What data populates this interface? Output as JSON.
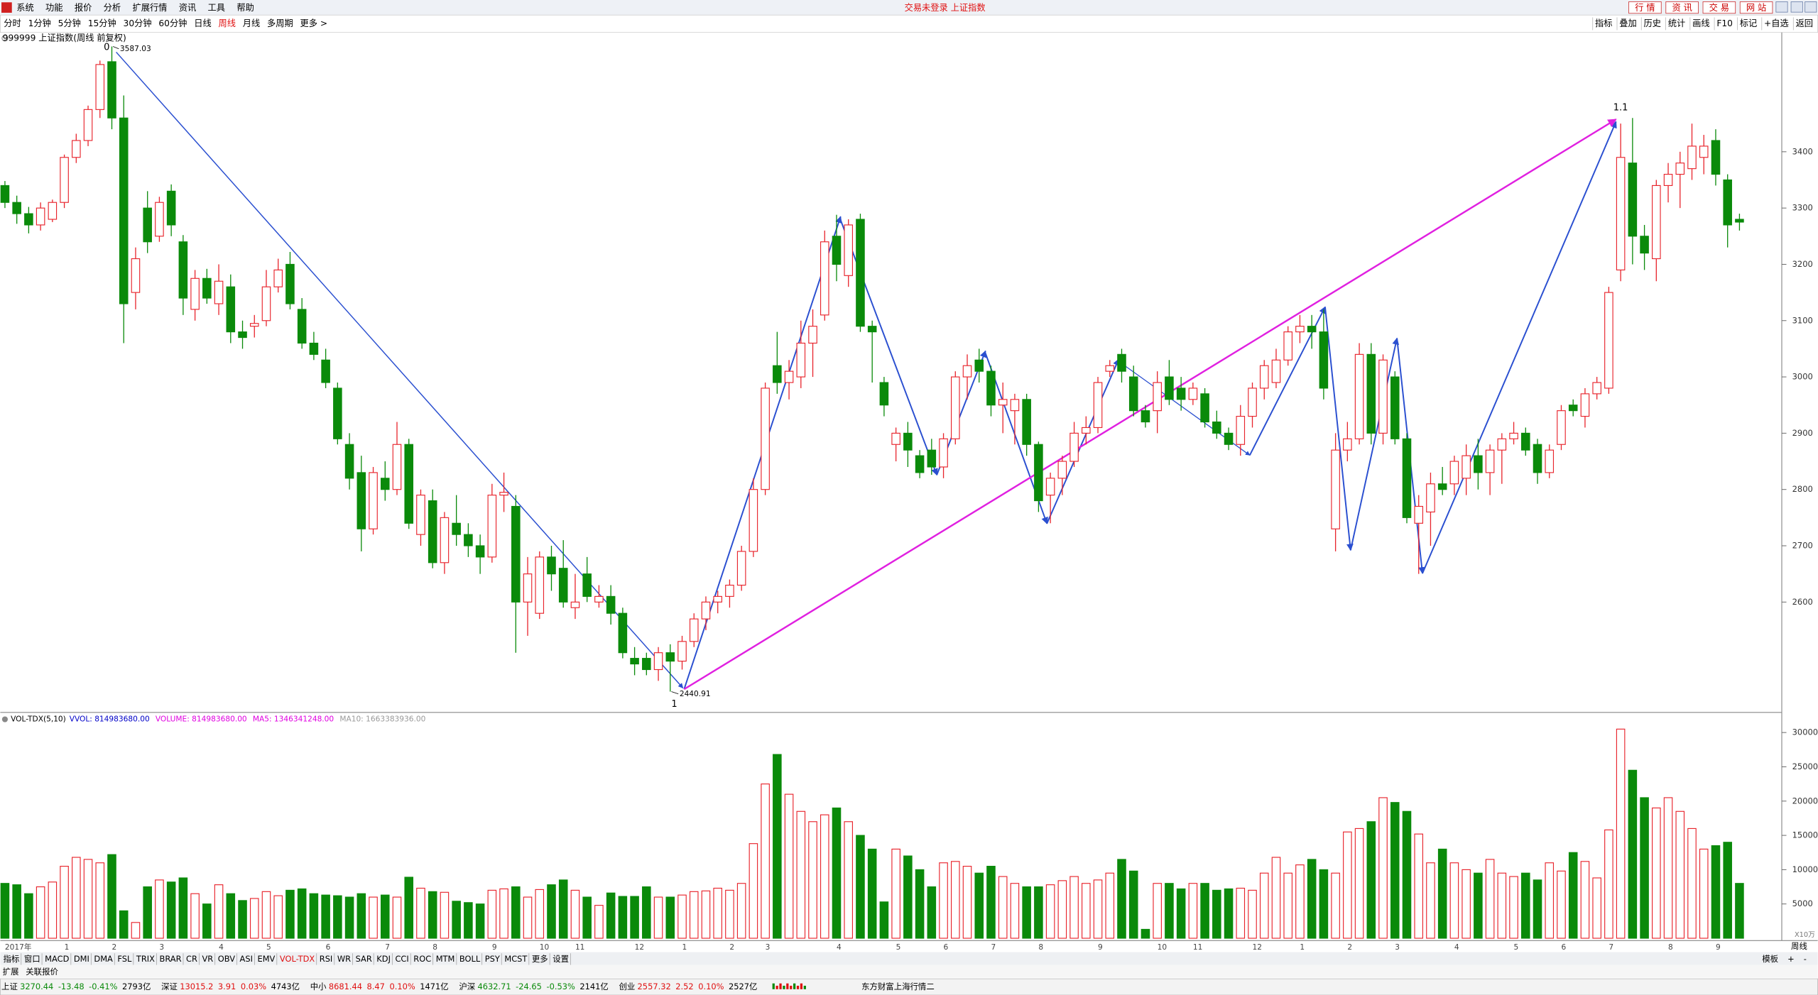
{
  "menu": [
    "系统",
    "功能",
    "报价",
    "分析",
    "扩展行情",
    "资讯",
    "工具",
    "帮助"
  ],
  "title": "交易未登录 上证指数",
  "top_buttons": [
    "行 情",
    "资 讯",
    "交 易",
    "网 站"
  ],
  "periods": [
    "分时",
    "1分钟",
    "5分钟",
    "15分钟",
    "30分钟",
    "60分钟",
    "日线",
    "周线",
    "月线",
    "多周期",
    "更多 >"
  ],
  "active_period": "周线",
  "tools": [
    "指标",
    "叠加",
    "历史",
    "统计",
    "画线",
    "F10",
    "标记",
    "+自选",
    "返回"
  ],
  "chart_data": [
    {
      "type": "candlestick",
      "title": "999999 上证指数(周线 前复权)",
      "up_color": "#e8242c",
      "down_color": "#0a8a0a",
      "wave_labels": [
        "0",
        "1",
        "1.1"
      ],
      "categories": [
        "2017年",
        null,
        null,
        null,
        null,
        "1",
        null,
        null,
        null,
        "2",
        null,
        null,
        null,
        "3",
        null,
        null,
        null,
        null,
        "4",
        null,
        null,
        null,
        "5",
        null,
        null,
        null,
        null,
        "6",
        null,
        null,
        null,
        null,
        "7",
        null,
        null,
        null,
        "8",
        null,
        null,
        null,
        null,
        "9",
        null,
        null,
        null,
        "10",
        null,
        null,
        "11",
        null,
        null,
        null,
        null,
        "12",
        null,
        null,
        null,
        "1",
        null,
        null,
        null,
        "2",
        null,
        null,
        "3",
        null,
        null,
        null,
        null,
        null,
        "4",
        null,
        null,
        null,
        null,
        "5",
        null,
        null,
        null,
        "6",
        null,
        null,
        null,
        "7",
        null,
        null,
        null,
        "8",
        null,
        null,
        null,
        null,
        "9",
        null,
        null,
        null,
        null,
        "10",
        null,
        null,
        "11",
        null,
        null,
        null,
        null,
        "12",
        null,
        null,
        null,
        "1",
        null,
        null,
        null,
        "2",
        null,
        null,
        null,
        "3",
        null,
        null,
        null,
        null,
        "4",
        null,
        null,
        null,
        null,
        "5",
        null,
        null,
        null,
        "6",
        null,
        null,
        null,
        "7",
        null,
        null,
        null,
        null,
        "8",
        null,
        null,
        null,
        "9",
        null,
        null
      ],
      "candles": [
        [
          3340,
          3348,
          3300,
          3310
        ],
        [
          3310,
          3322,
          3272,
          3290
        ],
        [
          3290,
          3302,
          3255,
          3270
        ],
        [
          3270,
          3310,
          3260,
          3300
        ],
        [
          3280,
          3315,
          3275,
          3310
        ],
        [
          3310,
          3395,
          3300,
          3390
        ],
        [
          3390,
          3432,
          3380,
          3420
        ],
        [
          3420,
          3482,
          3410,
          3475
        ],
        [
          3475,
          3562,
          3460,
          3555
        ],
        [
          3560,
          3587.03,
          3440,
          3460
        ],
        [
          3460,
          3500,
          3060,
          3130
        ],
        [
          3150,
          3230,
          3120,
          3210
        ],
        [
          3300,
          3330,
          3220,
          3240
        ],
        [
          3250,
          3320,
          3240,
          3310
        ],
        [
          3330,
          3342,
          3250,
          3270
        ],
        [
          3240,
          3252,
          3110,
          3140
        ],
        [
          3120,
          3190,
          3100,
          3175
        ],
        [
          3175,
          3192,
          3130,
          3140
        ],
        [
          3130,
          3200,
          3110,
          3170
        ],
        [
          3160,
          3182,
          3060,
          3080
        ],
        [
          3080,
          3100,
          3050,
          3070
        ],
        [
          3090,
          3110,
          3070,
          3095
        ],
        [
          3100,
          3190,
          3090,
          3160
        ],
        [
          3160,
          3210,
          3150,
          3190
        ],
        [
          3200,
          3222,
          3120,
          3130
        ],
        [
          3120,
          3140,
          3050,
          3060
        ],
        [
          3060,
          3080,
          3030,
          3040
        ],
        [
          3030,
          3050,
          2980,
          2990
        ],
        [
          2980,
          2990,
          2880,
          2890
        ],
        [
          2880,
          2900,
          2800,
          2820
        ],
        [
          2830,
          2860,
          2690,
          2730
        ],
        [
          2730,
          2840,
          2720,
          2830
        ],
        [
          2820,
          2850,
          2780,
          2800
        ],
        [
          2800,
          2920,
          2790,
          2880
        ],
        [
          2880,
          2890,
          2730,
          2740
        ],
        [
          2720,
          2800,
          2700,
          2790
        ],
        [
          2780,
          2800,
          2660,
          2670
        ],
        [
          2670,
          2760,
          2650,
          2750
        ],
        [
          2740,
          2790,
          2700,
          2720
        ],
        [
          2720,
          2740,
          2680,
          2700
        ],
        [
          2700,
          2720,
          2650,
          2680
        ],
        [
          2680,
          2810,
          2670,
          2790
        ],
        [
          2790,
          2830,
          2760,
          2795
        ],
        [
          2770,
          2790,
          2510,
          2600
        ],
        [
          2600,
          2680,
          2540,
          2650
        ],
        [
          2580,
          2690,
          2570,
          2680
        ],
        [
          2680,
          2700,
          2620,
          2650
        ],
        [
          2660,
          2710,
          2590,
          2600
        ],
        [
          2590,
          2650,
          2570,
          2600
        ],
        [
          2650,
          2680,
          2600,
          2610
        ],
        [
          2600,
          2630,
          2590,
          2610
        ],
        [
          2610,
          2630,
          2560,
          2580
        ],
        [
          2580,
          2590,
          2500,
          2510
        ],
        [
          2500,
          2520,
          2470,
          2490
        ],
        [
          2500,
          2510,
          2470,
          2480
        ],
        [
          2480,
          2520,
          2460,
          2510
        ],
        [
          2510,
          2525,
          2440.91,
          2495
        ],
        [
          2495,
          2540,
          2480,
          2530
        ],
        [
          2530,
          2580,
          2520,
          2570
        ],
        [
          2570,
          2610,
          2550,
          2600
        ],
        [
          2600,
          2620,
          2580,
          2610
        ],
        [
          2610,
          2640,
          2590,
          2630
        ],
        [
          2630,
          2700,
          2620,
          2690
        ],
        [
          2690,
          2820,
          2680,
          2800
        ],
        [
          2800,
          2990,
          2790,
          2980
        ],
        [
          3020,
          3080,
          2970,
          2990
        ],
        [
          2990,
          3030,
          2960,
          3010
        ],
        [
          3000,
          3100,
          2980,
          3060
        ],
        [
          3060,
          3120,
          3000,
          3090
        ],
        [
          3110,
          3260,
          3100,
          3240
        ],
        [
          3250,
          3288,
          3170,
          3200
        ],
        [
          3180,
          3280,
          3160,
          3270
        ],
        [
          3280,
          3290,
          3080,
          3090
        ],
        [
          3090,
          3100,
          2990,
          3080
        ],
        [
          2990,
          3000,
          2930,
          2950
        ],
        [
          2880,
          2910,
          2850,
          2900
        ],
        [
          2900,
          2920,
          2840,
          2870
        ],
        [
          2860,
          2870,
          2820,
          2830
        ],
        [
          2870,
          2890,
          2826,
          2840
        ],
        [
          2840,
          2900,
          2820,
          2890
        ],
        [
          2890,
          3010,
          2880,
          3000
        ],
        [
          3000,
          3040,
          2960,
          3020
        ],
        [
          3030,
          3050,
          2990,
          3010
        ],
        [
          3010,
          3020,
          2930,
          2950
        ],
        [
          2950,
          2990,
          2900,
          2960
        ],
        [
          2940,
          2970,
          2880,
          2960
        ],
        [
          2960,
          2970,
          2860,
          2880
        ],
        [
          2880,
          2885,
          2760,
          2780
        ],
        [
          2790,
          2830,
          2740,
          2820
        ],
        [
          2820,
          2860,
          2790,
          2850
        ],
        [
          2850,
          2920,
          2840,
          2900
        ],
        [
          2900,
          2930,
          2880,
          2910
        ],
        [
          2910,
          3000,
          2900,
          2990
        ],
        [
          3010,
          3030,
          3000,
          3020
        ],
        [
          3040,
          3050,
          2990,
          3010
        ],
        [
          3000,
          3020,
          2930,
          2940
        ],
        [
          2940,
          2950,
          2910,
          2920
        ],
        [
          2940,
          3010,
          2900,
          2990
        ],
        [
          3000,
          3030,
          2950,
          2960
        ],
        [
          2980,
          3000,
          2940,
          2960
        ],
        [
          2960,
          2990,
          2950,
          2980
        ],
        [
          2970,
          2980,
          2910,
          2920
        ],
        [
          2920,
          2940,
          2890,
          2900
        ],
        [
          2900,
          2910,
          2870,
          2880
        ],
        [
          2880,
          2950,
          2860,
          2930
        ],
        [
          2930,
          2990,
          2910,
          2980
        ],
        [
          2980,
          3030,
          2960,
          3020
        ],
        [
          2990,
          3050,
          2980,
          3030
        ],
        [
          3030,
          3090,
          3020,
          3080
        ],
        [
          3080,
          3110,
          3060,
          3090
        ],
        [
          3090,
          3110,
          3050,
          3080
        ],
        [
          3080,
          3120,
          2960,
          2980
        ],
        [
          2730,
          2900,
          2690,
          2870
        ],
        [
          2870,
          2920,
          2850,
          2890
        ],
        [
          2890,
          3060,
          2880,
          3040
        ],
        [
          3040,
          3060,
          2880,
          2900
        ],
        [
          2900,
          3040,
          2880,
          3030
        ],
        [
          3000,
          3010,
          2880,
          2890
        ],
        [
          2890,
          2900,
          2740,
          2750
        ],
        [
          2740,
          2790,
          2650,
          2770
        ],
        [
          2760,
          2830,
          2700,
          2810
        ],
        [
          2810,
          2840,
          2790,
          2800
        ],
        [
          2810,
          2860,
          2790,
          2850
        ],
        [
          2820,
          2880,
          2790,
          2860
        ],
        [
          2860,
          2890,
          2800,
          2830
        ],
        [
          2830,
          2880,
          2790,
          2870
        ],
        [
          2870,
          2900,
          2810,
          2890
        ],
        [
          2890,
          2920,
          2880,
          2900
        ],
        [
          2900,
          2910,
          2860,
          2870
        ],
        [
          2880,
          2890,
          2810,
          2830
        ],
        [
          2830,
          2880,
          2820,
          2870
        ],
        [
          2880,
          2950,
          2870,
          2940
        ],
        [
          2950,
          2960,
          2930,
          2940
        ],
        [
          2930,
          2980,
          2910,
          2970
        ],
        [
          2970,
          3000,
          2960,
          2990
        ],
        [
          2980,
          3160,
          2970,
          3150
        ],
        [
          3190,
          3450,
          3170,
          3390
        ],
        [
          3380,
          3460,
          3200,
          3250
        ],
        [
          3250,
          3270,
          3190,
          3220
        ],
        [
          3210,
          3350,
          3170,
          3340
        ],
        [
          3340,
          3380,
          3310,
          3360
        ],
        [
          3360,
          3400,
          3300,
          3380
        ],
        [
          3370,
          3450,
          3350,
          3410
        ],
        [
          3390,
          3430,
          3360,
          3410
        ],
        [
          3420,
          3440,
          3340,
          3360
        ],
        [
          3350,
          3360,
          3230,
          3270
        ],
        [
          3280,
          3290,
          3260,
          3275
        ]
      ],
      "ylim": [
        2404,
        3612
      ],
      "yticks": [
        2600,
        2700,
        2800,
        2900,
        3000,
        3100,
        3200,
        3300,
        3400
      ]
    },
    {
      "type": "bar",
      "title": "VOL-TDX(5,10)",
      "legend": [
        {
          "name": "VVOL: 814983680.00",
          "color": "#0000c8"
        },
        {
          "name": "VOLUME: 814983680.00",
          "color": "#e000e0"
        },
        {
          "name": "MA5: 1346341248.00",
          "color": "#e000e0"
        },
        {
          "name": "MA10: 1663383936.00",
          "color": "#999999"
        }
      ],
      "y_unit": "X10万",
      "values": [
        8000,
        7800,
        6500,
        7500,
        8200,
        10500,
        11800,
        11500,
        11000,
        12200,
        4000,
        2300,
        7500,
        8500,
        8200,
        8800,
        6500,
        5000,
        7800,
        6500,
        5500,
        5800,
        6800,
        6200,
        7000,
        7200,
        6500,
        6300,
        6200,
        6000,
        6500,
        6000,
        6300,
        6000,
        8900,
        7300,
        6800,
        6700,
        5400,
        5200,
        5000,
        7000,
        7200,
        7500,
        6000,
        7100,
        7800,
        8500,
        7000,
        6000,
        4800,
        6600,
        6100,
        6100,
        7500,
        6000,
        6000,
        6300,
        6800,
        6900,
        7300,
        7000,
        8000,
        13800,
        22500,
        26800,
        21000,
        18500,
        17000,
        18000,
        19000,
        17000,
        15000,
        13000,
        5300,
        13000,
        12000,
        10000,
        7500,
        11000,
        11200,
        10500,
        9500,
        10500,
        9000,
        8000,
        7500,
        7500,
        7800,
        8400,
        9000,
        8000,
        8500,
        9500,
        11500,
        9800,
        1300,
        8000,
        8000,
        7200,
        8000,
        8000,
        7000,
        7200,
        7300,
        7000,
        9500,
        11800,
        9500,
        10700,
        11500,
        10000,
        9500,
        15500,
        16000,
        17000,
        20500,
        19800,
        18500,
        15200,
        11000,
        13000,
        11000,
        10000,
        9500,
        11500,
        9500,
        9000,
        9500,
        8500,
        11000,
        9800,
        12500,
        11200,
        8800,
        15800,
        30500,
        24500,
        20500,
        19000,
        20500,
        18500,
        16000,
        13000,
        13500,
        14000,
        8000
      ],
      "ylim": [
        0,
        31250
      ],
      "yticks": [
        5000,
        10000,
        15000,
        20000,
        25000,
        30000
      ]
    }
  ],
  "period_label": "周线",
  "tabs": [
    "指标",
    "窗口",
    "MACD",
    "DMI",
    "DMA",
    "FSL",
    "TRIX",
    "BRAR",
    "CR",
    "VR",
    "OBV",
    "ASI",
    "EMV",
    "VOL-TDX",
    "RSI",
    "WR",
    "SAR",
    "KDJ",
    "CCI",
    "ROC",
    "MTM",
    "BOLL",
    "PSY",
    "MCST",
    "更多",
    "设置"
  ],
  "active_tab": "VOL-TDX",
  "tab_tools": [
    "模板",
    "+",
    "-"
  ],
  "sub_tabs": [
    "扩展",
    "关联报价"
  ],
  "status": [
    {
      "name": "上证",
      "values": [
        "3270.44",
        "-13.48",
        "-0.41%",
        "2793亿"
      ]
    },
    {
      "name": "深证",
      "values": [
        "13015.2",
        "3.91",
        "0.03%",
        "4743亿"
      ]
    },
    {
      "name": "中小",
      "values": [
        "8681.44",
        "8.47",
        "0.10%",
        "1471亿"
      ]
    },
    {
      "name": "沪深",
      "values": [
        "4632.71",
        "-24.65",
        "-0.53%",
        "2141亿"
      ]
    },
    {
      "name": "创业",
      "values": [
        "2557.32",
        "2.52",
        "0.10%",
        "2527亿"
      ]
    }
  ],
  "feed": "东方财富上海行情二"
}
